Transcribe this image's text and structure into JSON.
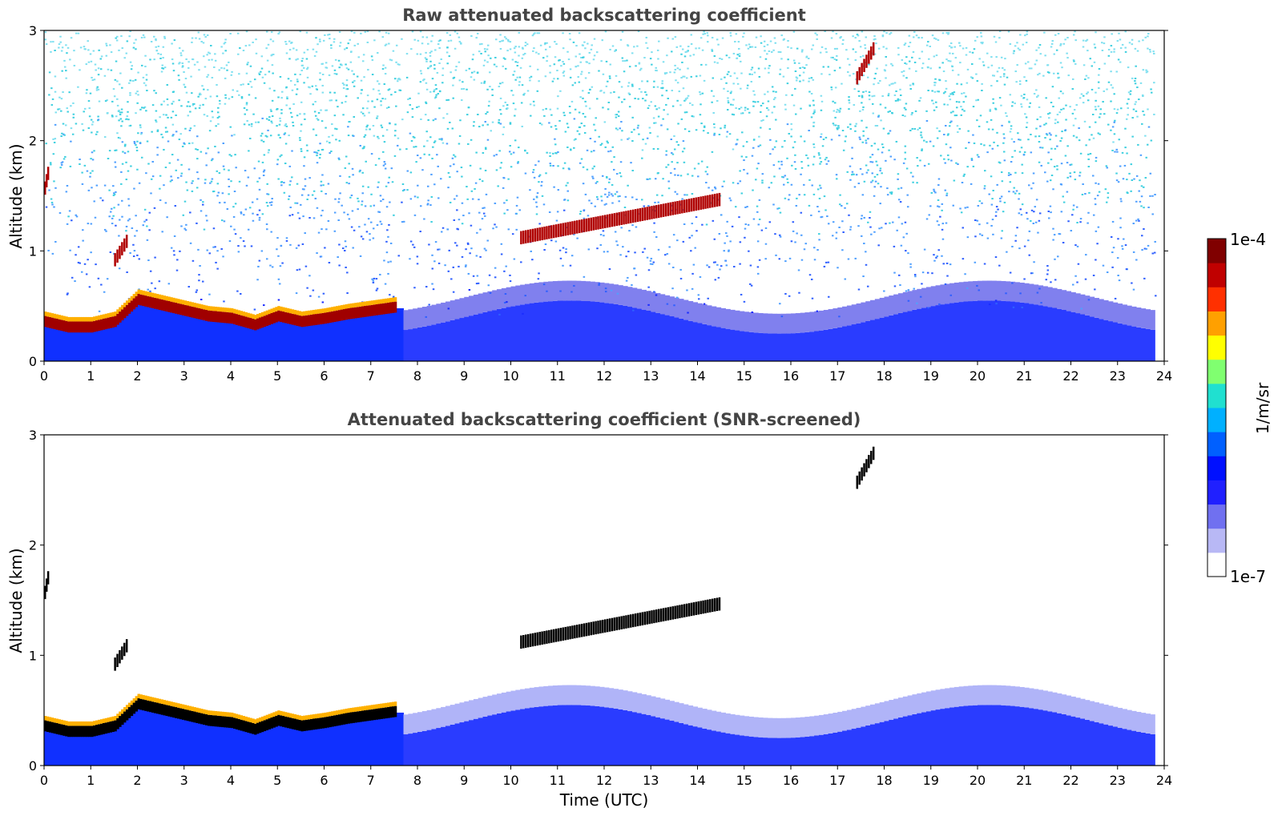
{
  "chart_data": [
    {
      "type": "heatmap",
      "title": "Raw attenuated backscattering coefficient",
      "xlabel": "",
      "ylabel": "Altitude (km)",
      "xlim": [
        0,
        24
      ],
      "ylim": [
        0,
        3
      ],
      "xticks": [
        0,
        1,
        2,
        3,
        4,
        5,
        6,
        7,
        8,
        9,
        10,
        11,
        12,
        13,
        14,
        15,
        16,
        17,
        18,
        19,
        20,
        21,
        22,
        23,
        24
      ],
      "yticks": [
        0,
        1,
        2,
        3
      ],
      "features": [
        {
          "name": "boundary-layer-aerosol-top",
          "time_utc": [
            0,
            0.5,
            1,
            1.5,
            2,
            2.5,
            3,
            3.5,
            4,
            4.5,
            5,
            5.5,
            6,
            6.5,
            7,
            7.5
          ],
          "altitude_km": [
            0.35,
            0.3,
            0.3,
            0.35,
            0.55,
            0.5,
            0.45,
            0.4,
            0.38,
            0.32,
            0.4,
            0.35,
            0.38,
            0.42,
            0.45,
            0.48
          ]
        },
        {
          "name": "low-cloud",
          "time_utc": [
            1.5,
            1.8
          ],
          "altitude_km": [
            0.9,
            1.1
          ]
        },
        {
          "name": "cloud-patches",
          "time_utc": [
            10.2,
            14.5
          ],
          "altitude_km": [
            1.1,
            1.45
          ]
        },
        {
          "name": "high-cloud",
          "time_utc": [
            17.4,
            17.8
          ],
          "altitude_km": [
            2.55,
            2.85
          ]
        },
        {
          "name": "cloud-at-start",
          "time_utc": [
            0,
            0.1
          ],
          "altitude_km": [
            1.55,
            1.75
          ]
        }
      ],
      "background": "noise"
    },
    {
      "type": "heatmap",
      "title": "Attenuated backscattering coefficient (SNR-screened)",
      "xlabel": "Time (UTC)",
      "ylabel": "Altitude (km)",
      "xlim": [
        0,
        24
      ],
      "ylim": [
        0,
        3
      ],
      "xticks": [
        0,
        1,
        2,
        3,
        4,
        5,
        6,
        7,
        8,
        9,
        10,
        11,
        12,
        13,
        14,
        15,
        16,
        17,
        18,
        19,
        20,
        21,
        22,
        23,
        24
      ],
      "yticks": [
        0,
        1,
        2,
        3
      ],
      "features": [
        {
          "name": "boundary-layer-aerosol-top",
          "time_utc": [
            0,
            0.5,
            1,
            1.5,
            2,
            2.5,
            3,
            3.5,
            4,
            4.5,
            5,
            5.5,
            6,
            6.5,
            7,
            7.5
          ],
          "altitude_km": [
            0.35,
            0.3,
            0.3,
            0.35,
            0.55,
            0.5,
            0.45,
            0.4,
            0.38,
            0.32,
            0.4,
            0.35,
            0.38,
            0.42,
            0.45,
            0.48
          ]
        },
        {
          "name": "low-cloud",
          "time_utc": [
            1.5,
            1.8
          ],
          "altitude_km": [
            0.9,
            1.1
          ]
        },
        {
          "name": "cloud-patches",
          "time_utc": [
            10.2,
            14.5
          ],
          "altitude_km": [
            1.1,
            1.45
          ]
        },
        {
          "name": "high-cloud",
          "time_utc": [
            17.4,
            17.8
          ],
          "altitude_km": [
            2.55,
            2.85
          ]
        },
        {
          "name": "cloud-at-start",
          "time_utc": [
            0,
            0.1
          ],
          "altitude_km": [
            1.55,
            1.75
          ]
        }
      ],
      "background": "screened"
    }
  ],
  "colorbar": {
    "label": "1/m/sr",
    "max_label": "1e-4",
    "min_label": "1e-7",
    "scale": "log",
    "range": [
      1e-07,
      0.0001
    ],
    "colors": [
      "#ffffff",
      "#b8b8f5",
      "#7070f0",
      "#2020ff",
      "#0010ff",
      "#0060ff",
      "#00b0ff",
      "#20e0d0",
      "#80ff70",
      "#ffff00",
      "#ffa000",
      "#ff3000",
      "#c00000",
      "#800000"
    ]
  }
}
